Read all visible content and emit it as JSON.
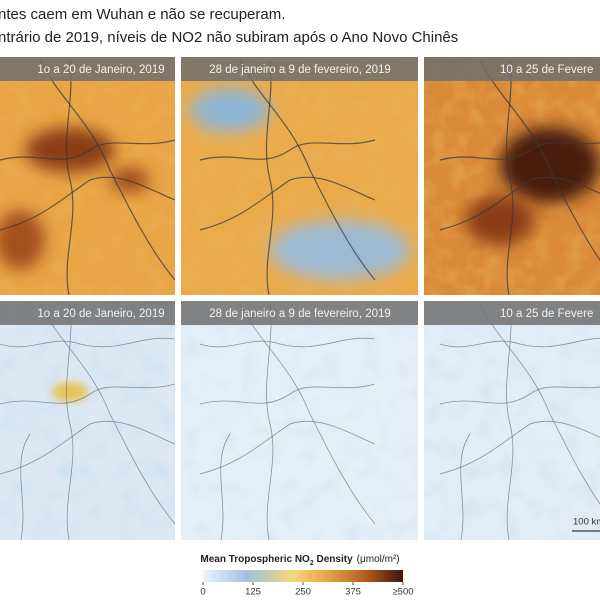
{
  "header": {
    "line1": "ntes caem em Wuhan e não se recuperam.",
    "line2": "ntrário de 2019, níveis de NO2 não subiram após o Ano Novo Chinês"
  },
  "top_row": [
    "1o a 20 de Janeiro, 2019",
    "28 de janeiro a 9 de fevereiro, 2019",
    "10 a 25 de Fevere"
  ],
  "bottom_row": [
    "1o a 20 de Janeiro, 2019",
    "28 de janeiro a 9 de fevereiro, 2019",
    "10 a 25 de Fevere"
  ],
  "scale_bar": "100 km",
  "legend": {
    "title": "Mean Tropospheric NO",
    "subscript": "2",
    "title_end": " Density",
    "unit": "(μmol/m²)",
    "ticks": [
      "0",
      "125",
      "250",
      "375",
      "≥500"
    ]
  }
}
